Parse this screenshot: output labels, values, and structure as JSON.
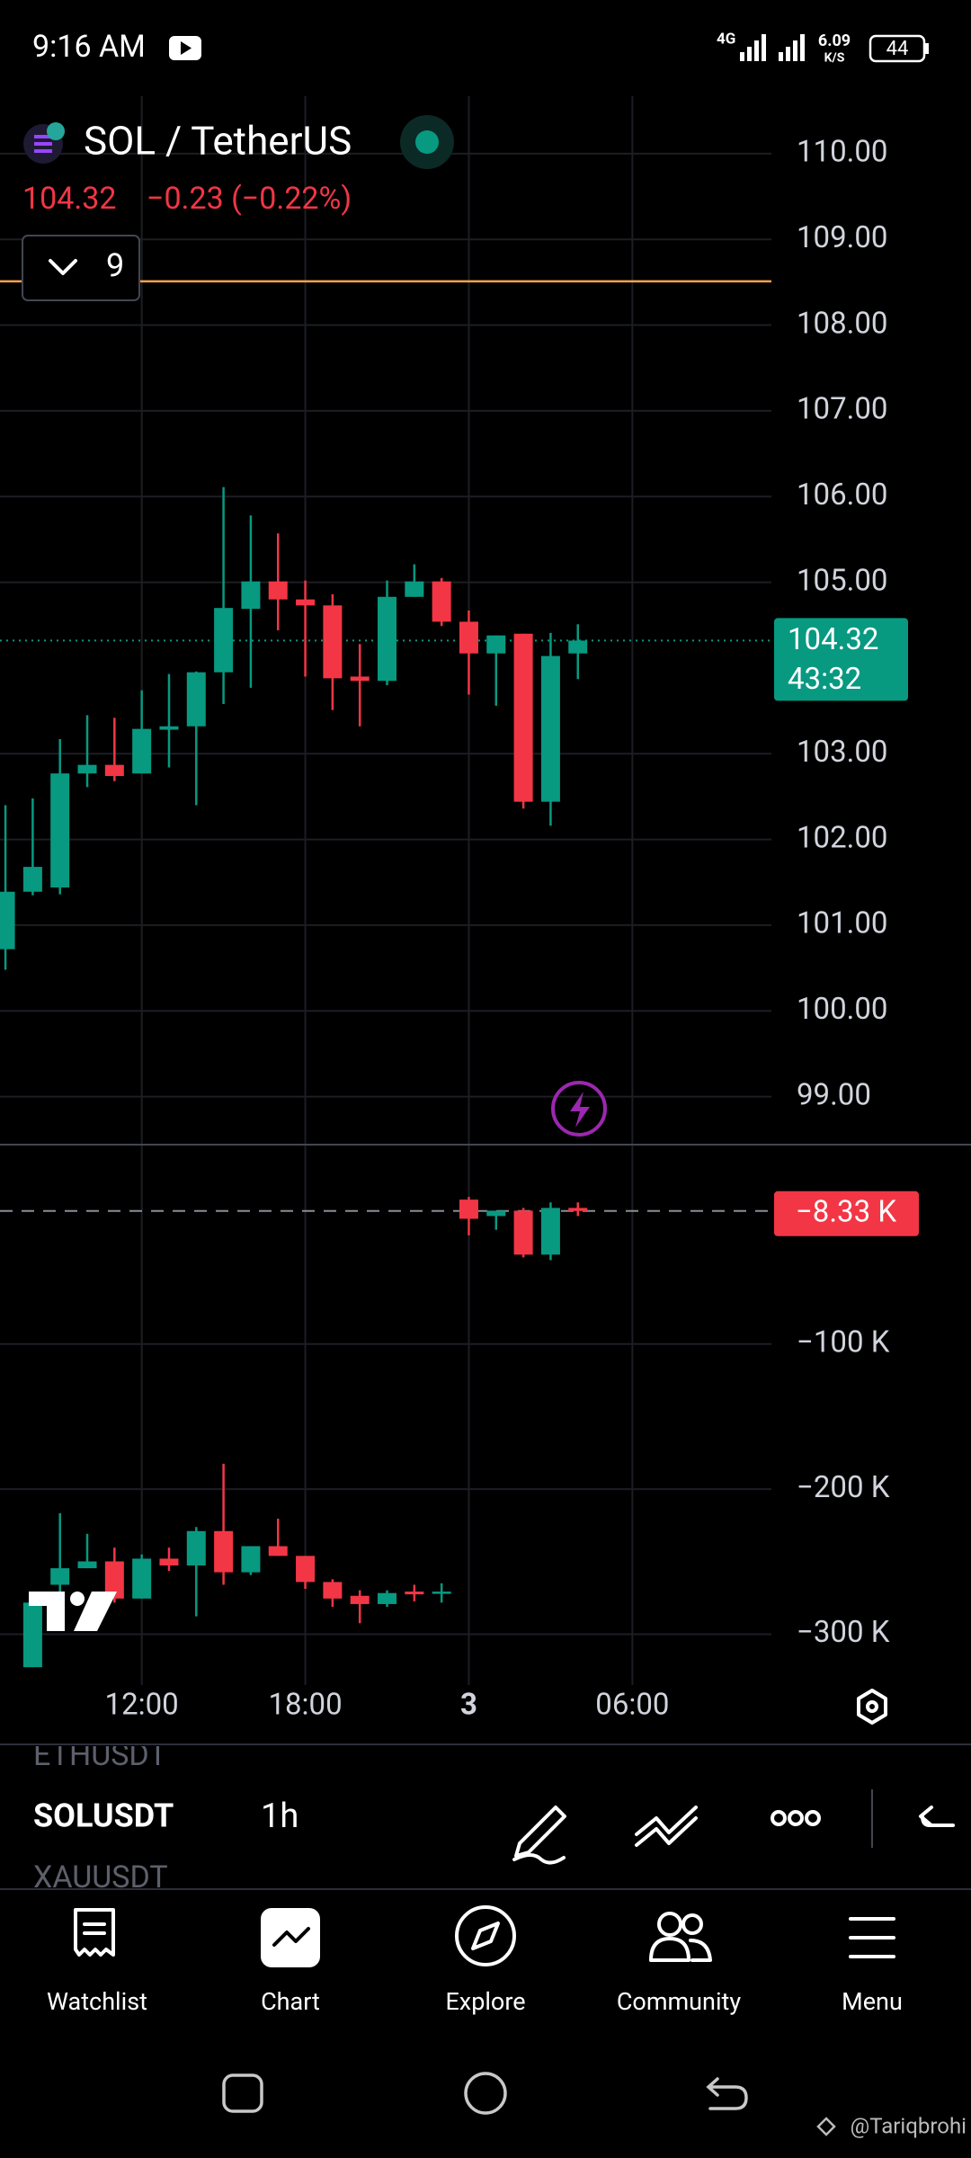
{
  "status_bar": {
    "time": "9:16 AM",
    "network": "4G",
    "speed": "6.09",
    "speed_unit": "K/S",
    "battery": "44"
  },
  "header": {
    "symbol": "SOL / TetherUS",
    "change": "−0.23 (−0.22%)",
    "interval_button": "9"
  },
  "chart_data": [
    {
      "type": "candlestick",
      "up_color": "#089981",
      "down_color": "#f23645",
      "xlim": [
        -0.2,
        28.1
      ],
      "xticks": [
        {
          "value": 5,
          "label": "12:00"
        },
        {
          "value": 11,
          "label": "18:00"
        },
        {
          "value": 17,
          "label": "3"
        },
        {
          "value": 23,
          "label": "06:00"
        }
      ],
      "ylim": [
        98.44,
        110.67
      ],
      "yticks": [
        {
          "value": 110,
          "label": "110.00"
        },
        {
          "value": 109,
          "label": "109.00"
        },
        {
          "value": 108,
          "label": "108.00"
        },
        {
          "value": 107,
          "label": "107.00"
        },
        {
          "value": 106,
          "label": "106.00"
        },
        {
          "value": 105,
          "label": "105.00"
        },
        {
          "value": 103,
          "label": "103.00"
        },
        {
          "value": 102,
          "label": "102.00"
        },
        {
          "value": 101,
          "label": "101.00"
        },
        {
          "value": 100,
          "label": "100.00"
        },
        {
          "value": 99,
          "label": "99.00"
        }
      ],
      "grid": true,
      "last_price": 104.32,
      "countdown": "43:32",
      "alert_price": 108.51,
      "x": [
        0,
        1,
        2,
        3,
        4,
        5,
        6,
        7,
        8,
        9,
        10,
        11,
        12,
        13,
        14,
        15,
        16,
        17,
        18,
        19,
        20,
        21
      ],
      "open": [
        100.72,
        101.39,
        101.44,
        102.77,
        102.87,
        102.77,
        103.28,
        103.32,
        103.95,
        104.69,
        105.01,
        104.8,
        104.73,
        103.9,
        103.85,
        104.83,
        105.01,
        104.54,
        104.17,
        104.4,
        102.44,
        104.17
      ],
      "high": [
        102.4,
        102.48,
        103.17,
        103.45,
        103.42,
        103.74,
        103.93,
        103.96,
        106.11,
        105.78,
        105.57,
        105.02,
        104.86,
        104.28,
        105.02,
        105.21,
        105.05,
        104.67,
        104.38,
        104.4,
        104.41,
        104.51
      ],
      "low": [
        100.48,
        101.35,
        101.36,
        102.61,
        102.68,
        102.77,
        102.84,
        102.4,
        103.58,
        103.77,
        104.44,
        103.9,
        103.51,
        103.32,
        103.8,
        104.83,
        104.49,
        103.69,
        103.56,
        102.36,
        102.16,
        103.87
      ],
      "close": [
        101.39,
        101.68,
        102.77,
        102.87,
        102.74,
        103.29,
        103.32,
        103.95,
        104.7,
        105.01,
        104.8,
        104.73,
        103.88,
        103.85,
        104.83,
        105.01,
        104.54,
        104.17,
        104.38,
        102.44,
        104.14,
        104.32
      ]
    },
    {
      "type": "candlestick",
      "up_color": "#089981",
      "down_color": "#f23645",
      "xlim": [
        -0.2,
        28.1
      ],
      "ylim": [
        -335,
        37.4
      ],
      "yticks": [
        {
          "value": -100,
          "label": "−100 K"
        },
        {
          "value": -200,
          "label": "−200 K"
        },
        {
          "value": -300,
          "label": "−300 K"
        }
      ],
      "grid": true,
      "last_value": -8.33,
      "last_value_label": "−8.33 K",
      "x": [
        1,
        2,
        3,
        4,
        5,
        6,
        7,
        8,
        9,
        10,
        11,
        12,
        13,
        14,
        15,
        16,
        17,
        18,
        19,
        20,
        21
      ],
      "open": [
        -322.7,
        -265.9,
        -254.5,
        -249.8,
        -275.4,
        -247.9,
        -252.6,
        -228.9,
        -257.3,
        -239.3,
        -246.0,
        -264.0,
        -273.5,
        -279.2,
        -270.6,
        -271.6,
        -0.5,
        -11.8,
        -8.1,
        -38.4,
        -6.2
      ],
      "high": [
        -273.5,
        -216.6,
        -230.8,
        -240.3,
        -245.0,
        -240.3,
        -226.1,
        -182.5,
        -239.3,
        -220.4,
        -246.0,
        -262.1,
        -269.7,
        -269.7,
        -265.9,
        -264.9,
        1.4,
        -8.1,
        -6.2,
        -2.4,
        -2.4
      ],
      "low": [
        -322.7,
        -273.5,
        -254.5,
        -278.2,
        -275.4,
        -256.4,
        -287.7,
        -265.9,
        -259.2,
        -246.0,
        -268.7,
        -281.1,
        -292.4,
        -281.1,
        -277.3,
        -278.2,
        -25.1,
        -21.3,
        -40.3,
        -42.2,
        -11.8
      ],
      "close": [
        -278.2,
        -254.5,
        -249.8,
        -275.4,
        -247.9,
        -252.6,
        -228.9,
        -257.3,
        -239.3,
        -246.0,
        -264.0,
        -275.4,
        -279.2,
        -271.6,
        -272.5,
        -270.6,
        -13.7,
        -8.1,
        -38.4,
        -6.2,
        -8.33
      ]
    }
  ],
  "toolbar": {
    "symbols": [
      "ETHUSDT",
      "SOLUSDT",
      "XAUUSDT"
    ],
    "interval": "1h"
  },
  "nav": [
    "Watchlist",
    "Chart",
    "Explore",
    "Community",
    "Menu"
  ],
  "watermark": "@Tariqbrohi"
}
